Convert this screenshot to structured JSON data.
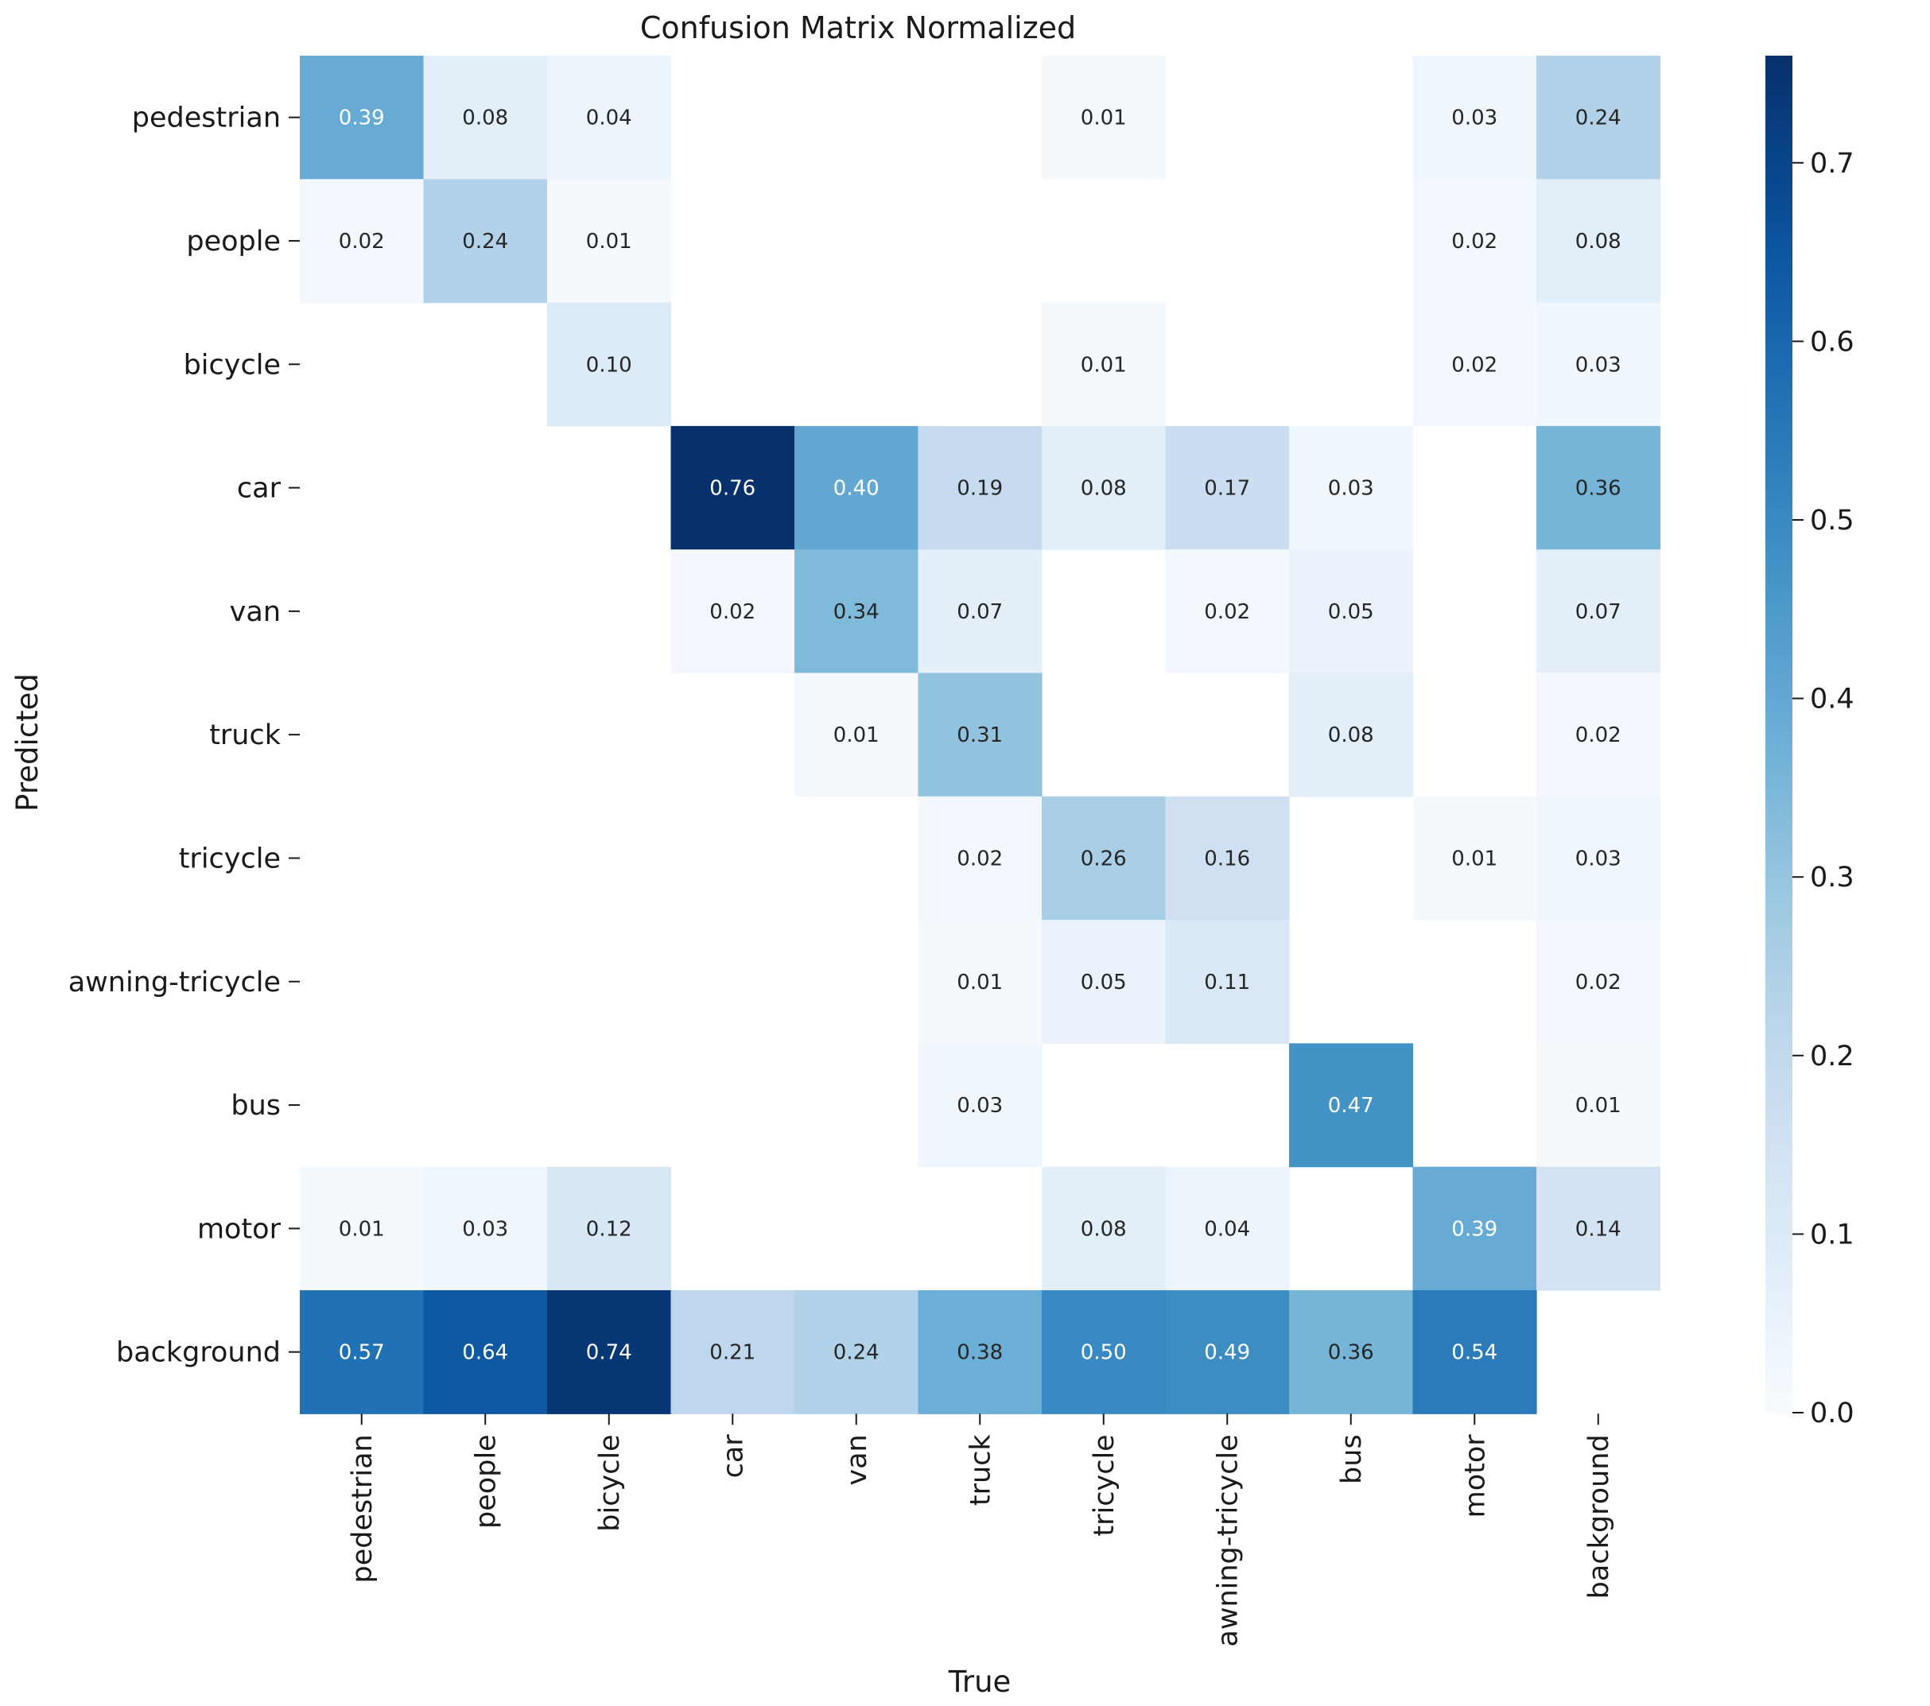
{
  "chart_data": {
    "type": "heatmap",
    "title": "Confusion Matrix Normalized",
    "xlabel": "True",
    "ylabel": "Predicted",
    "x_categories": [
      "pedestrian",
      "people",
      "bicycle",
      "car",
      "van",
      "truck",
      "tricycle",
      "awning-tricycle",
      "bus",
      "motor",
      "background"
    ],
    "y_categories": [
      "pedestrian",
      "people",
      "bicycle",
      "car",
      "van",
      "truck",
      "tricycle",
      "awning-tricycle",
      "bus",
      "motor",
      "background"
    ],
    "values": [
      [
        0.39,
        0.08,
        0.04,
        null,
        null,
        null,
        0.01,
        null,
        null,
        0.03,
        0.24
      ],
      [
        0.02,
        0.24,
        0.01,
        null,
        null,
        null,
        null,
        null,
        null,
        0.02,
        0.08
      ],
      [
        null,
        null,
        0.1,
        null,
        null,
        null,
        0.01,
        null,
        null,
        0.02,
        0.03
      ],
      [
        null,
        null,
        null,
        0.76,
        0.4,
        0.19,
        0.08,
        0.17,
        0.03,
        null,
        0.36
      ],
      [
        null,
        null,
        null,
        0.02,
        0.34,
        0.07,
        null,
        0.02,
        0.05,
        null,
        0.07
      ],
      [
        null,
        null,
        null,
        null,
        0.01,
        0.31,
        null,
        null,
        0.08,
        null,
        0.02
      ],
      [
        null,
        null,
        null,
        null,
        null,
        0.02,
        0.26,
        0.16,
        null,
        0.01,
        0.03
      ],
      [
        null,
        null,
        null,
        null,
        null,
        0.01,
        0.05,
        0.11,
        null,
        null,
        0.02
      ],
      [
        null,
        null,
        null,
        null,
        null,
        0.03,
        null,
        null,
        0.47,
        null,
        0.01
      ],
      [
        0.01,
        0.03,
        0.12,
        null,
        null,
        null,
        0.08,
        0.04,
        null,
        0.39,
        0.14
      ],
      [
        0.57,
        0.64,
        0.74,
        0.21,
        0.24,
        0.38,
        0.5,
        0.49,
        0.36,
        0.54,
        null
      ]
    ],
    "colormap": "Blues",
    "vmin": 0.0,
    "vmax": 0.76,
    "colorbar_ticks": [
      "0.0",
      "0.1",
      "0.2",
      "0.3",
      "0.4",
      "0.5",
      "0.6",
      "0.7"
    ],
    "colorbar_tick_values": [
      0.0,
      0.1,
      0.2,
      0.3,
      0.4,
      0.5,
      0.6,
      0.7
    ],
    "legend_placement": "right colorbar"
  }
}
